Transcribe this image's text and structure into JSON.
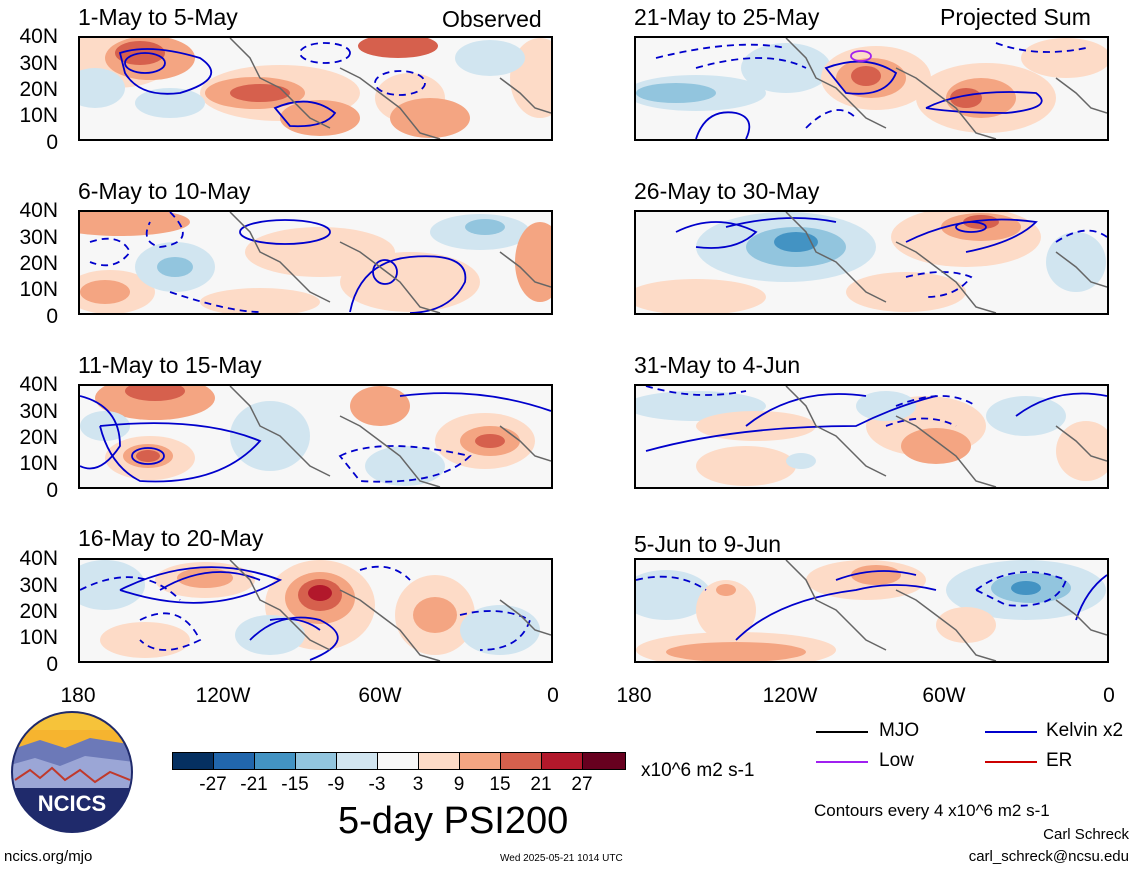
{
  "panel_titles": {
    "p0": "1-May to 5-May",
    "p1": "6-May to 10-May",
    "p2": "11-May to 15-May",
    "p3": "16-May to 20-May",
    "p4": "21-May to 25-May",
    "p5": "26-May to 30-May",
    "p6": "31-May to 4-Jun",
    "p7": "5-Jun to 9-Jun"
  },
  "column_labels": {
    "left": "Observed",
    "right": "Projected Sum"
  },
  "y_axis_labels": [
    "40N",
    "30N",
    "20N",
    "10N",
    "0"
  ],
  "x_axis_labels": [
    "180",
    "120W",
    "60W",
    "0"
  ],
  "colorbar": {
    "labels": [
      "-27",
      "-21",
      "-15",
      "-9",
      "-3",
      "3",
      "9",
      "15",
      "21",
      "27"
    ],
    "colors": [
      "#053061",
      "#2166ac",
      "#4393c3",
      "#92c5de",
      "#d1e5f0",
      "#f7f7f7",
      "#fddbc7",
      "#f4a582",
      "#d6604d",
      "#b2182b",
      "#67001f"
    ],
    "units": "x10^6 m2 s-1"
  },
  "legend": {
    "mjo": "MJO",
    "mjo_color": "#000000",
    "kelvin": "Kelvin x2",
    "kelvin_color": "#0000cc",
    "low": "Low",
    "low_color": "#a020f0",
    "er": "ER",
    "er_color": "#cc0000"
  },
  "main_title": "5-day PSI200",
  "contour_note": "Contours every 4 x10^6 m2 s-1",
  "author_name": "Carl Schreck",
  "author_email": "carl_schreck@ncsu.edu",
  "site_url": "ncics.org/mjo",
  "timestamp": "Wed 2025-05-21 1014 UTC",
  "logo_text": "NCICS"
}
